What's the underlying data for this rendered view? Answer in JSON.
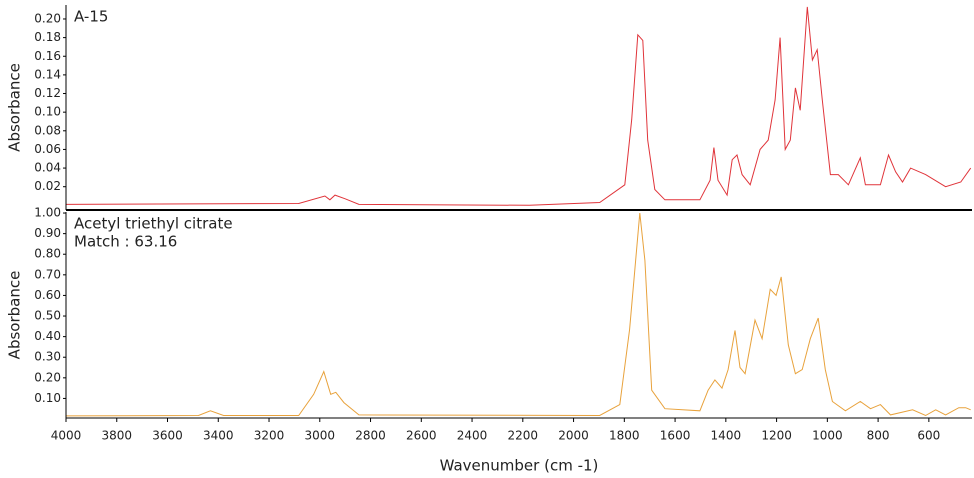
{
  "chart_data": [
    {
      "type": "line",
      "annotations": [
        "A-15"
      ],
      "ylabel": "Absorbance",
      "color": "#e0343a",
      "x": [
        4000,
        3083,
        2980,
        2960,
        2940,
        2900,
        2846,
        2174,
        1897,
        1798,
        1771,
        1747,
        1727,
        1708,
        1680,
        1640,
        1502,
        1462,
        1447,
        1431,
        1395,
        1375,
        1356,
        1336,
        1304,
        1265,
        1233,
        1206,
        1186,
        1166,
        1146,
        1126,
        1107,
        1079,
        1059,
        1040,
        1020,
        988,
        957,
        917,
        870,
        850,
        791,
        759,
        731,
        704,
        672,
        613,
        534,
        474,
        435
      ],
      "values": [
        0.001,
        0.002,
        0.01,
        0.006,
        0.011,
        0.007,
        0.001,
        0.0,
        0.003,
        0.022,
        0.092,
        0.183,
        0.177,
        0.07,
        0.017,
        0.006,
        0.006,
        0.027,
        0.062,
        0.027,
        0.011,
        0.049,
        0.054,
        0.033,
        0.022,
        0.06,
        0.07,
        0.113,
        0.18,
        0.06,
        0.07,
        0.126,
        0.102,
        0.213,
        0.156,
        0.167,
        0.113,
        0.033,
        0.033,
        0.022,
        0.051,
        0.022,
        0.022,
        0.054,
        0.036,
        0.025,
        0.04,
        0.033,
        0.02,
        0.025,
        0.04
      ],
      "xlim": [
        4000,
        430
      ],
      "ylim": [
        -0.005,
        0.215
      ],
      "yticks": [
        0.02,
        0.04,
        0.06,
        0.08,
        {
          "value": 0.1,
          "label": "0.10"
        },
        0.12,
        0.14,
        0.16,
        0.18,
        {
          "value": 0.2,
          "label": "0.20"
        }
      ]
    },
    {
      "type": "line",
      "annotations": [
        "Acetyl triethyl citrate",
        "Match : 63.16"
      ],
      "ylabel": "Absorbance",
      "xlabel": "Wavenumber (cm -1)",
      "color": "#e8a23c",
      "x": [
        4000,
        3478,
        3431,
        3379,
        3083,
        3024,
        2984,
        2957,
        2937,
        2905,
        2846,
        1897,
        1818,
        1779,
        1739,
        1719,
        1692,
        1640,
        1502,
        1470,
        1443,
        1415,
        1391,
        1364,
        1344,
        1324,
        1285,
        1257,
        1225,
        1202,
        1182,
        1154,
        1126,
        1099,
        1067,
        1036,
        1008,
        980,
        929,
        870,
        830,
        791,
        751,
        664,
        613,
        573,
        534,
        482,
        455,
        435
      ],
      "values": [
        0.015,
        0.017,
        0.04,
        0.017,
        0.017,
        0.12,
        0.23,
        0.12,
        0.13,
        0.08,
        0.02,
        0.017,
        0.07,
        0.435,
        1.0,
        0.77,
        0.14,
        0.05,
        0.04,
        0.14,
        0.19,
        0.15,
        0.24,
        0.43,
        0.25,
        0.22,
        0.48,
        0.39,
        0.63,
        0.6,
        0.69,
        0.36,
        0.22,
        0.24,
        0.39,
        0.49,
        0.24,
        0.085,
        0.04,
        0.085,
        0.05,
        0.07,
        0.02,
        0.045,
        0.017,
        0.045,
        0.02,
        0.055,
        0.055,
        0.045
      ],
      "xlim": [
        4000,
        430
      ],
      "ylim": [
        0.005,
        1.005
      ],
      "xticks": [
        4000,
        3800,
        3600,
        3400,
        3200,
        3000,
        2800,
        2600,
        2400,
        2200,
        2000,
        1800,
        1600,
        1400,
        1200,
        1000,
        800,
        600
      ],
      "yticks": [
        {
          "value": 0.1,
          "label": "0.10"
        },
        {
          "value": 0.2,
          "label": "0.20"
        },
        {
          "value": 0.3,
          "label": "0.30"
        },
        {
          "value": 0.4,
          "label": "0.40"
        },
        {
          "value": 0.5,
          "label": "0.50"
        },
        {
          "value": 0.6,
          "label": "0.60"
        },
        {
          "value": 0.7,
          "label": "0.70"
        },
        {
          "value": 0.8,
          "label": "0.80"
        },
        {
          "value": 0.9,
          "label": "0.90"
        },
        {
          "value": 1,
          "label": "1.00"
        }
      ]
    }
  ]
}
